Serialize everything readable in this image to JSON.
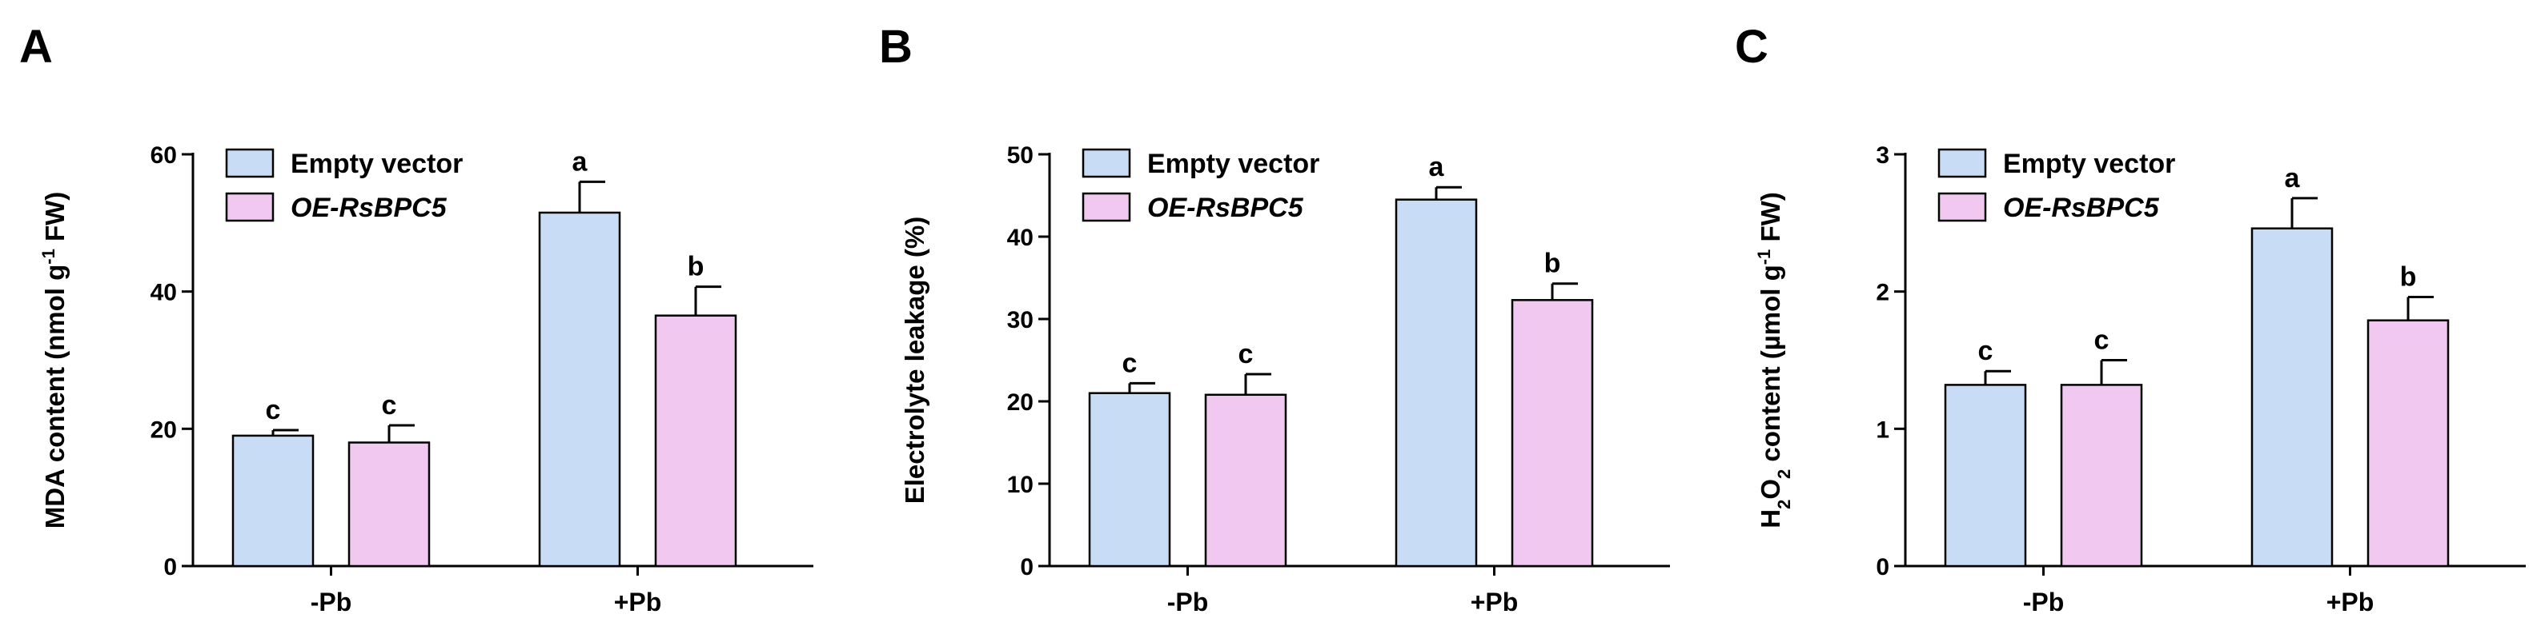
{
  "colors": {
    "empty_vector_fill": "#c9dcf5",
    "oe_fill": "#f0c8f0",
    "stroke": "#000000"
  },
  "legend": {
    "items": [
      {
        "label": "Empty vector",
        "italic": false
      },
      {
        "label": "OE-RsBPC5",
        "italic": true
      }
    ]
  },
  "chart_data": [
    {
      "panel": "A",
      "type": "bar",
      "categories": [
        "-Pb",
        "+Pb"
      ],
      "ylabel_parts": [
        {
          "t": "MDA content (nmol g",
          "s": "n"
        },
        {
          "t": "-1",
          "s": "sup"
        },
        {
          "t": " FW)",
          "s": "n"
        }
      ],
      "ylim": [
        0,
        60
      ],
      "ticks": [
        "0",
        "20",
        "40",
        "60"
      ],
      "series": [
        {
          "name": "Empty vector",
          "values": [
            19,
            51.5
          ],
          "errors": [
            0.8,
            4.5
          ],
          "letters": [
            "c",
            "a"
          ]
        },
        {
          "name": "OE-RsBPC5",
          "values": [
            18,
            36.5
          ],
          "errors": [
            2.5,
            4.2
          ],
          "letters": [
            "c",
            "b"
          ]
        }
      ]
    },
    {
      "panel": "B",
      "type": "bar",
      "categories": [
        "-Pb",
        "+Pb"
      ],
      "ylabel_parts": [
        {
          "t": "Electrolyte leakage (%)",
          "s": "n"
        }
      ],
      "ylim": [
        0,
        50
      ],
      "ticks": [
        "0",
        "10",
        "20",
        "30",
        "40",
        "50"
      ],
      "series": [
        {
          "name": "Empty vector",
          "values": [
            21,
            44.5
          ],
          "errors": [
            1.2,
            1.5
          ],
          "letters": [
            "c",
            "a"
          ]
        },
        {
          "name": "OE-RsBPC5",
          "values": [
            20.8,
            32.3
          ],
          "errors": [
            2.5,
            2.0
          ],
          "letters": [
            "c",
            "b"
          ]
        }
      ]
    },
    {
      "panel": "C",
      "type": "bar",
      "categories": [
        "-Pb",
        "+Pb"
      ],
      "ylabel_parts": [
        {
          "t": "H",
          "s": "n"
        },
        {
          "t": "2",
          "s": "sub"
        },
        {
          "t": "O",
          "s": "n"
        },
        {
          "t": "2",
          "s": "sub"
        },
        {
          "t": " content (µmol g",
          "s": "n"
        },
        {
          "t": "-1",
          "s": "sup"
        },
        {
          "t": " FW)",
          "s": "n"
        }
      ],
      "ylim": [
        0,
        3
      ],
      "ticks": [
        "0",
        "1",
        "2",
        "3"
      ],
      "series": [
        {
          "name": "Empty vector",
          "values": [
            1.32,
            2.46
          ],
          "errors": [
            0.1,
            0.22
          ],
          "letters": [
            "c",
            "a"
          ]
        },
        {
          "name": "OE-RsBPC5",
          "values": [
            1.32,
            1.79
          ],
          "errors": [
            0.18,
            0.17
          ],
          "letters": [
            "c",
            "b"
          ]
        }
      ]
    }
  ]
}
